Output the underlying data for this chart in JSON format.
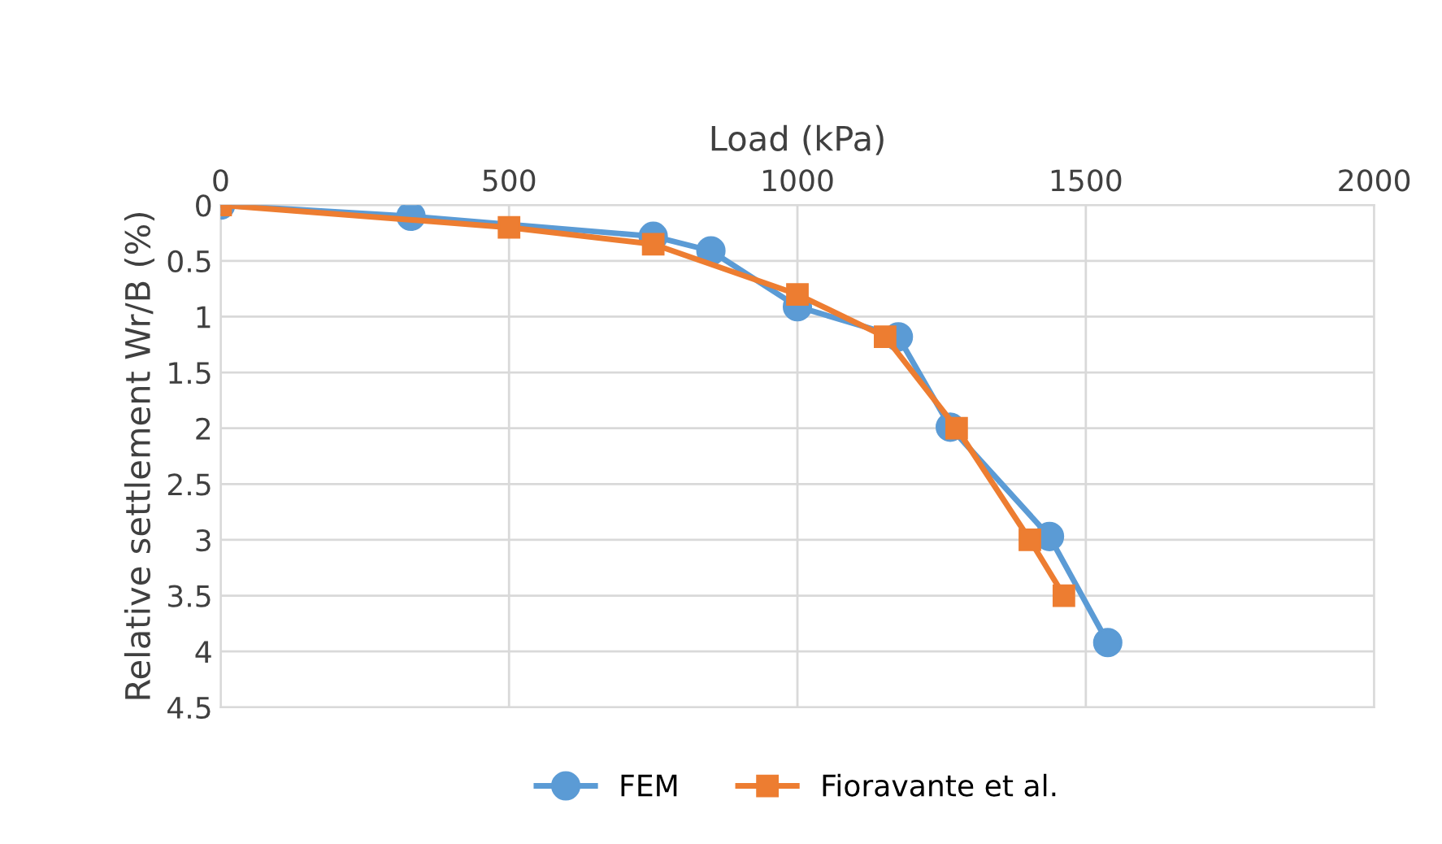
{
  "chart_data": {
    "type": "line",
    "xlabel": "Load (kPa)",
    "ylabel": "Relative settlement Wr/B (%)",
    "xlim": [
      0,
      2000
    ],
    "xticks": [
      0,
      500,
      1000,
      1500,
      2000
    ],
    "ylim": [
      4.5,
      0
    ],
    "yticks": [
      0,
      0.5,
      1,
      1.5,
      2,
      2.5,
      3,
      3.5,
      4,
      4.5
    ],
    "grid": true,
    "legend": "bottom",
    "line_style": "solid",
    "series": [
      {
        "name": "FEM",
        "color": "#5b9bd5",
        "marker": "circle",
        "x": [
          0,
          330,
          750,
          850,
          1000,
          1175,
          1265,
          1437,
          1538
        ],
        "values": [
          0,
          0.1,
          0.28,
          0.41,
          0.91,
          1.18,
          1.99,
          2.97,
          3.92
        ]
      },
      {
        "name": "Fioravante et al.",
        "color": "#ed7d31",
        "marker": "square",
        "x": [
          0,
          500,
          750,
          1000,
          1152,
          1276,
          1403,
          1462
        ],
        "values": [
          0,
          0.2,
          0.35,
          0.8,
          1.18,
          2.0,
          3.0,
          3.5
        ]
      }
    ]
  }
}
